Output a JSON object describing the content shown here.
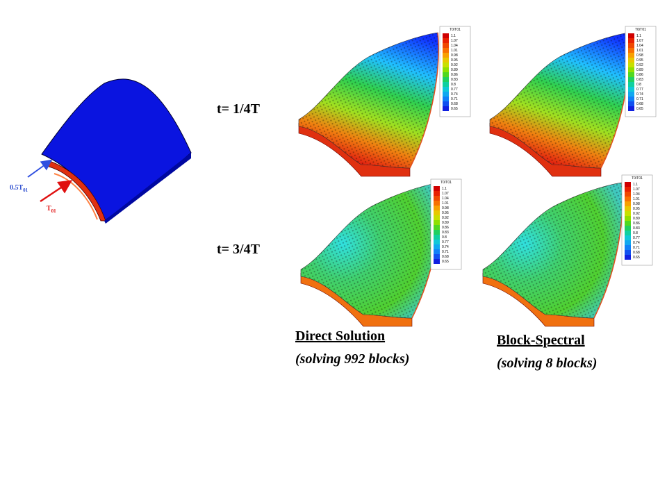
{
  "annotations": {
    "inlet_low": {
      "text": "0.5T",
      "subscript": "01"
    },
    "inlet_high": {
      "text": "T",
      "subscript": "01"
    }
  },
  "rows": [
    {
      "label": "t= 1/4T"
    },
    {
      "label": "t= 3/4T"
    }
  ],
  "columns": [
    {
      "title": "Direct Solution",
      "subtitle": "(solving 992 blocks)"
    },
    {
      "title": "Block-Spectral",
      "subtitle": "(solving 8 blocks)"
    }
  ],
  "colorbar": {
    "title": "T0/T01",
    "labels": [
      "1.1",
      "1.07",
      "1.04",
      "1.01",
      "0.98",
      "0.95",
      "0.92",
      "0.89",
      "0.86",
      "0.83",
      "0.8",
      "0.77",
      "0.74",
      "0.71",
      "0.68",
      "0.65"
    ]
  }
}
